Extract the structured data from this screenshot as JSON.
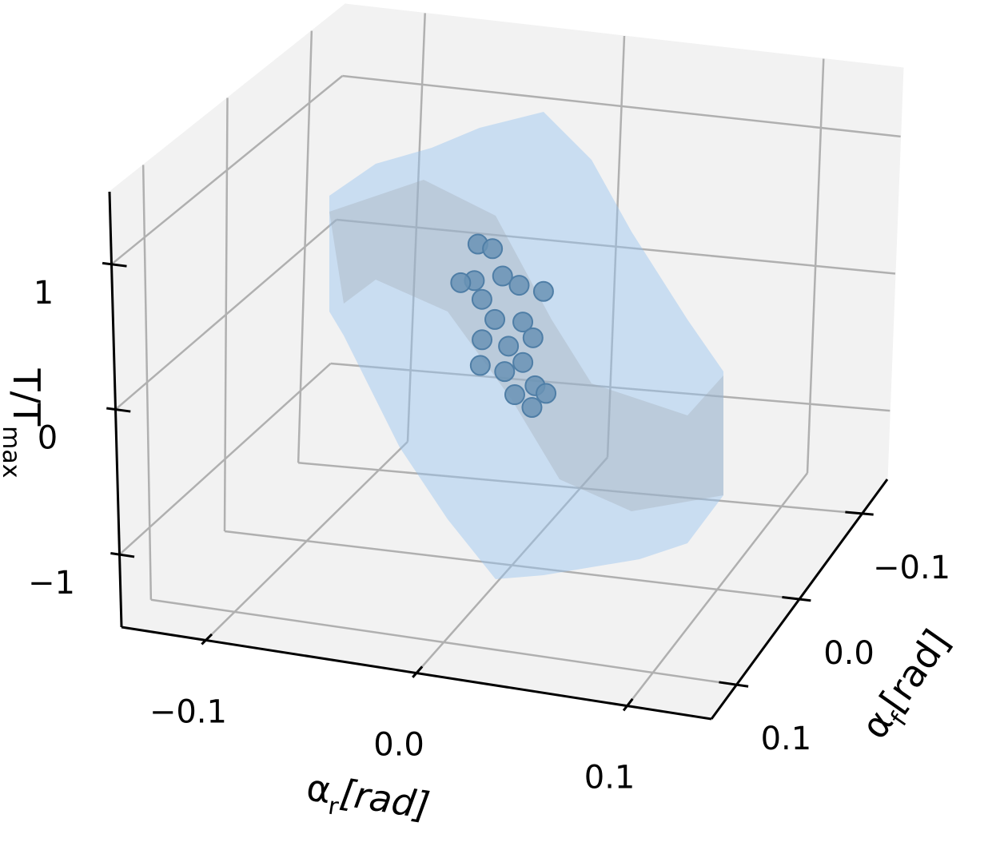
{
  "chart_data": {
    "type": "scatter3d",
    "x_label": {
      "symbol": "α",
      "subscript": "r",
      "unit": "[rad]"
    },
    "y_label": {
      "symbol": "α",
      "subscript": "f",
      "unit": "[rad]"
    },
    "z_label": {
      "symbol": "T/T",
      "subscript": "max"
    },
    "xlim": [
      -0.14,
      0.14
    ],
    "ylim": [
      -0.14,
      0.14
    ],
    "zlim": [
      -1.5,
      1.5
    ],
    "xticks": [
      {
        "value": -0.1,
        "label": "−0.1"
      },
      {
        "value": 0,
        "label": "0.0"
      },
      0.1
    ],
    "yticks": [
      {
        "value": -0.1,
        "label": "−0.1"
      },
      {
        "value": 0,
        "label": "0.0"
      },
      0.1
    ],
    "zticks": [
      {
        "value": -1,
        "label": "−1"
      },
      0,
      1
    ],
    "grid": true,
    "series": [
      {
        "color": "#6a93b5",
        "x": [
          -0.012,
          -0.005,
          -0.01,
          -0.02,
          0.0,
          0.008,
          -0.008,
          0.0,
          0.01,
          0.018,
          -0.006,
          0.005,
          0.015,
          -0.005,
          0.005,
          0.012,
          0.01,
          0.018,
          0.015,
          0.02
        ],
        "y": [
          0.02,
          0.02,
          0.03,
          0.02,
          0.02,
          0.02,
          0.025,
          0.03,
          0.02,
          0.015,
          0.03,
          0.025,
          0.02,
          0.035,
          0.03,
          0.025,
          0.03,
          0.025,
          0.02,
          0.015
        ],
        "z": [
          0.8,
          0.78,
          0.6,
          0.52,
          0.6,
          0.55,
          0.45,
          0.35,
          0.3,
          0.5,
          0.2,
          0.15,
          0.2,
          0.05,
          0.0,
          0.05,
          -0.15,
          -0.1,
          -0.28,
          -0.2
        ]
      }
    ]
  }
}
